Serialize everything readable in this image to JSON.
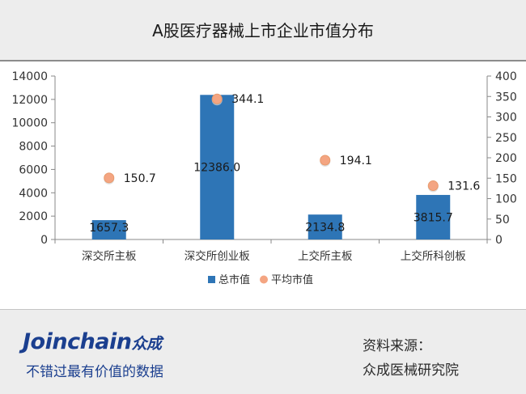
{
  "header": {
    "title": "A股医疗器械上市企业市值分布"
  },
  "chart_data": {
    "type": "bar",
    "title": "A股医疗器械上市企业市值分布",
    "categories": [
      "深交所主板",
      "深交所创业板",
      "上交所主板",
      "上交所科创板"
    ],
    "series": [
      {
        "name": "总市值",
        "kind": "bar",
        "axis": "left",
        "color": "#2e75b6",
        "values": [
          1657.3,
          12386.0,
          2134.8,
          3815.7
        ],
        "labels": [
          "1657.3",
          "12386.0",
          "2134.8",
          "3815.7"
        ]
      },
      {
        "name": "平均市值",
        "kind": "scatter",
        "axis": "right",
        "color": "#f4a582",
        "values": [
          150.7,
          344.1,
          194.1,
          131.6
        ],
        "labels": [
          "150.7",
          "344.1",
          "194.1",
          "131.6"
        ]
      }
    ],
    "y_left": {
      "min": 0,
      "max": 14000,
      "ticks": [
        "0",
        "2000",
        "4000",
        "6000",
        "8000",
        "10000",
        "12000",
        "14000"
      ]
    },
    "y_right": {
      "min": 0,
      "max": 400,
      "ticks": [
        "0",
        "50",
        "100",
        "150",
        "200",
        "250",
        "300",
        "350",
        "400"
      ]
    },
    "legend": {
      "position": "bottom"
    },
    "grid": false
  },
  "footer": {
    "brand_latin": "Joinchain",
    "brand_cn": "众成",
    "slogan": "不错过最有价值的数据",
    "source_label": "资料来源：",
    "source_value": "众成医械研究院"
  }
}
